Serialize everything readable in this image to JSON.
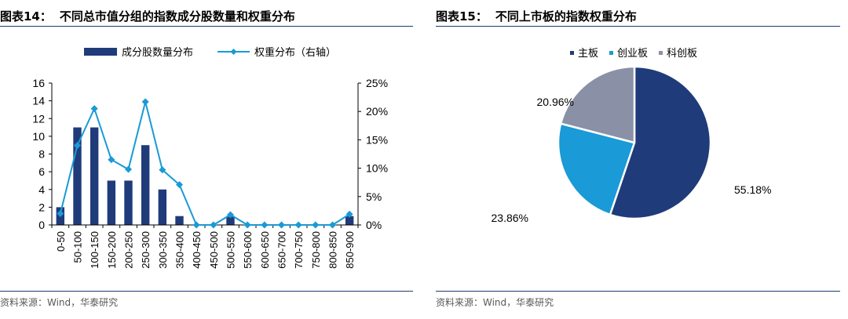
{
  "figures": [
    {
      "number": "图表14：",
      "title": "不同总市值分组的指数成分股数量和权重分布",
      "source": "资料来源：Wind，华泰研究"
    },
    {
      "number": "图表15：",
      "title": "不同上市板的指数权重分布",
      "source": "资料来源：Wind，华泰研究"
    }
  ],
  "colors": {
    "navy": "#1f3b7a",
    "blue": "#1a9ad6",
    "slate": "#8a91a6",
    "rule": "#1f3b73"
  },
  "chart_data": [
    {
      "type": "bar",
      "categories": [
        "0-50",
        "50-100",
        "100-150",
        "150-200",
        "200-250",
        "250-300",
        "300-350",
        "350-400",
        "400-450",
        "450-500",
        "500-550",
        "550-600",
        "600-650",
        "650-700",
        "700-750",
        "750-800",
        "800-850",
        "850-900"
      ],
      "series": [
        {
          "name": "成分股数量分布",
          "kind": "bar",
          "axis": "left",
          "values": [
            2,
            11,
            11,
            5,
            5,
            9,
            4,
            1,
            0,
            0,
            1,
            0,
            0,
            0,
            0,
            0,
            0,
            1
          ]
        },
        {
          "name": "权重分布（右轴）",
          "kind": "line",
          "axis": "right",
          "values": [
            2.0,
            14.0,
            20.5,
            11.5,
            9.8,
            21.7,
            9.7,
            7.1,
            0,
            0,
            1.8,
            0,
            0,
            0,
            0,
            0,
            0,
            1.9
          ]
        }
      ],
      "ylim": [
        0,
        16
      ],
      "yticks": [
        "0",
        "2",
        "4",
        "6",
        "8",
        "10",
        "12",
        "14",
        "16"
      ],
      "y2lim": [
        0,
        25
      ],
      "y2ticks": [
        "0%",
        "5%",
        "10%",
        "15%",
        "20%",
        "25%"
      ],
      "legend_position": "top"
    },
    {
      "type": "pie",
      "labels": [
        "主板",
        "创业板",
        "科创板"
      ],
      "values": [
        55.18,
        23.86,
        20.96
      ],
      "value_labels": [
        "55.18%",
        "23.86%",
        "20.96%"
      ],
      "legend_position": "top"
    }
  ]
}
